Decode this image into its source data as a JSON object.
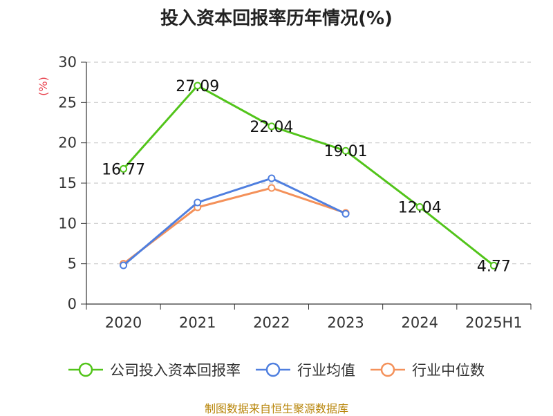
{
  "chart_data": {
    "type": "line",
    "title": "投入资本回报率历年情况(%)",
    "ylabel": "(%)",
    "xlabel": "",
    "categories": [
      "2020",
      "2021",
      "2022",
      "2023",
      "2024",
      "2025H1"
    ],
    "ylim": [
      0,
      30
    ],
    "yticks": [
      0,
      5,
      10,
      15,
      20,
      25,
      30
    ],
    "grid": true,
    "legend_position": "bottom",
    "series": [
      {
        "name": "公司投入资本回报率",
        "color": "#52c41a",
        "values": [
          16.77,
          27.09,
          22.04,
          19.01,
          12.04,
          4.77
        ],
        "labels": [
          "16.77",
          "27.09",
          "22.04",
          "19.01",
          "12.04",
          "4.77"
        ]
      },
      {
        "name": "行业均值",
        "color": "#4f7fdf",
        "values": [
          4.8,
          12.6,
          15.6,
          11.2,
          null,
          null
        ]
      },
      {
        "name": "行业中位数",
        "color": "#f4915a",
        "values": [
          5.0,
          12.0,
          14.4,
          11.3,
          null,
          null
        ]
      }
    ]
  },
  "source_text": "制图数据来自恒生聚源数据库"
}
